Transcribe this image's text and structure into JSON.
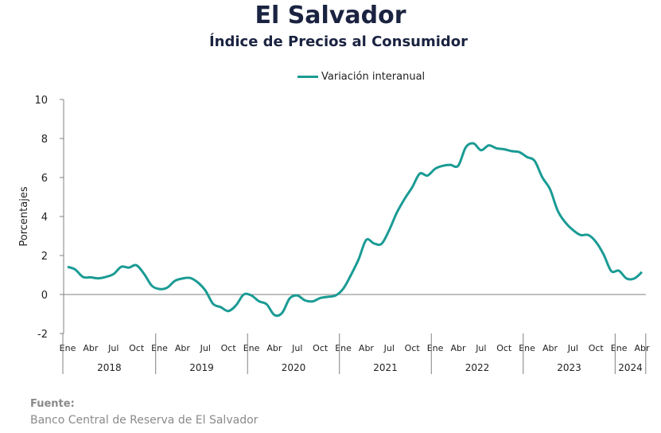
{
  "title": "El Salvador",
  "subtitle": "Índice de Precios al Consumidor",
  "legend_label": "Variación interanual",
  "source_label": "Fuente:",
  "source_text": "Banco Central de Reserva de El Salvador",
  "colors": {
    "line": "#1a9b94",
    "axis": "#808080",
    "title": "#1a2340"
  },
  "chart_data": {
    "type": "line",
    "title": "El Salvador",
    "subtitle": "Índice de Precios al Consumidor",
    "ylabel": "Porcentajes",
    "ylim": [
      -2,
      10
    ],
    "yticks": [
      -2,
      0,
      2,
      4,
      6,
      8,
      10
    ],
    "month_labels": [
      "Ene",
      "Abr",
      "Jul",
      "Oct"
    ],
    "years": [
      "2018",
      "2019",
      "2020",
      "2021",
      "2022",
      "2023",
      "2024"
    ],
    "x_range": [
      "2018-01",
      "2024-04"
    ],
    "legend_position": "top-center",
    "series": [
      {
        "name": "Variación interanual",
        "x": [
          "2018-01",
          "2018-02",
          "2018-03",
          "2018-04",
          "2018-05",
          "2018-06",
          "2018-07",
          "2018-08",
          "2018-09",
          "2018-10",
          "2018-11",
          "2018-12",
          "2019-01",
          "2019-02",
          "2019-03",
          "2019-04",
          "2019-05",
          "2019-06",
          "2019-07",
          "2019-08",
          "2019-09",
          "2019-10",
          "2019-11",
          "2019-12",
          "2020-01",
          "2020-02",
          "2020-03",
          "2020-04",
          "2020-05",
          "2020-06",
          "2020-07",
          "2020-08",
          "2020-09",
          "2020-10",
          "2020-11",
          "2020-12",
          "2021-01",
          "2021-02",
          "2021-03",
          "2021-04",
          "2021-05",
          "2021-06",
          "2021-07",
          "2021-08",
          "2021-09",
          "2021-10",
          "2021-11",
          "2021-12",
          "2022-01",
          "2022-02",
          "2022-03",
          "2022-04",
          "2022-05",
          "2022-06",
          "2022-07",
          "2022-08",
          "2022-09",
          "2022-10",
          "2022-11",
          "2022-12",
          "2023-01",
          "2023-02",
          "2023-03",
          "2023-04",
          "2023-05",
          "2023-06",
          "2023-07",
          "2023-08",
          "2023-09",
          "2023-10",
          "2023-11",
          "2023-12",
          "2024-01",
          "2024-02",
          "2024-03",
          "2024-04"
        ],
        "values": [
          1.42,
          1.28,
          0.9,
          0.88,
          0.83,
          0.9,
          1.05,
          1.42,
          1.38,
          1.5,
          1.05,
          0.45,
          0.28,
          0.35,
          0.7,
          0.82,
          0.85,
          0.62,
          0.2,
          -0.48,
          -0.65,
          -0.85,
          -0.55,
          0.0,
          -0.05,
          -0.35,
          -0.5,
          -1.05,
          -0.95,
          -0.2,
          -0.05,
          -0.3,
          -0.35,
          -0.18,
          -0.12,
          -0.05,
          0.3,
          1.0,
          1.8,
          2.8,
          2.62,
          2.6,
          3.3,
          4.2,
          4.9,
          5.5,
          6.2,
          6.1,
          6.45,
          6.6,
          6.65,
          6.6,
          7.55,
          7.75,
          7.4,
          7.65,
          7.5,
          7.45,
          7.35,
          7.3,
          7.05,
          6.85,
          6.0,
          5.4,
          4.3,
          3.7,
          3.3,
          3.05,
          3.05,
          2.7,
          2.05,
          1.2,
          1.22,
          0.82,
          0.82,
          1.15
        ]
      }
    ]
  }
}
